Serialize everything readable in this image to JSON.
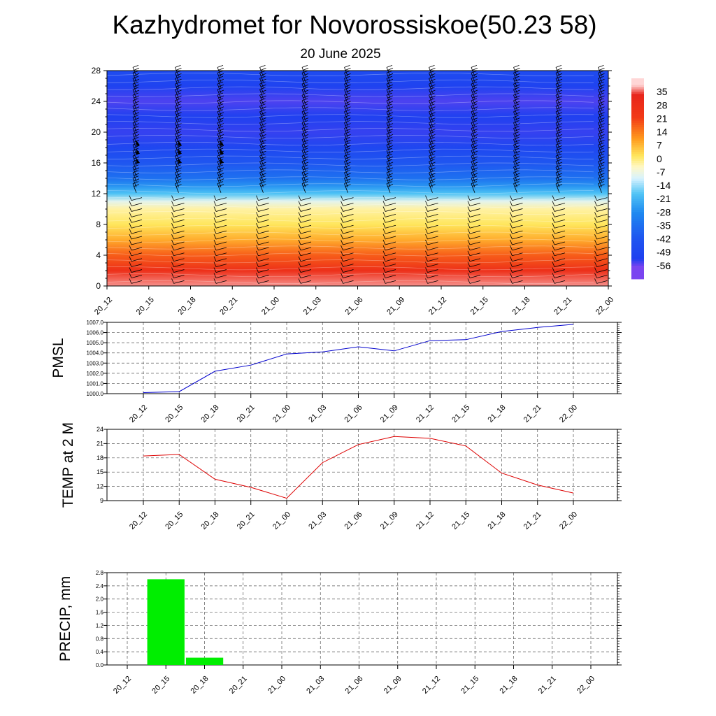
{
  "header": {
    "title": "Kazhydromet for Novorossiskoe(50.23 58)",
    "subtitle": "20 June 2025"
  },
  "chart_data": [
    {
      "type": "heatmap",
      "title": "",
      "xlabel": "",
      "ylabel": "",
      "x_ticks": [
        "20_12",
        "20_15",
        "20_18",
        "20_21",
        "21_00",
        "21_03",
        "21_06",
        "21_09",
        "21_12",
        "21_15",
        "21_18",
        "21_21",
        "22_00"
      ],
      "y_ticks": [
        "0",
        "4",
        "8",
        "12",
        "16",
        "20",
        "24",
        "28"
      ],
      "ylim": [
        0,
        28
      ],
      "y_levels_km": [
        0,
        2,
        4,
        6,
        8,
        10,
        11,
        12,
        13,
        14,
        16,
        18,
        20,
        22,
        24,
        26,
        28
      ],
      "temperature_profile_c": [
        33,
        24,
        14,
        5,
        -2,
        -6,
        -12,
        -22,
        -30,
        -38,
        -45,
        -52,
        -57,
        -55,
        -58,
        -54,
        -50
      ],
      "colorbar_labels": [
        "35",
        "28",
        "21",
        "14",
        "7",
        "0",
        "-7",
        "-14",
        "-21",
        "-28",
        "-35",
        "-42",
        "-49",
        "-56"
      ],
      "colors": {
        "warm": "#e8261c",
        "orange": "#ff9a1e",
        "yellow": "#fff4a0",
        "cyan": "#4fc3f5",
        "blue": "#1f3ff0",
        "violet": "#7a45f0"
      },
      "overlay": "wind barbs"
    },
    {
      "type": "line",
      "title": "",
      "ylabel": "PMSL",
      "categories": [
        "20_12",
        "20_15",
        "20_18",
        "20_21",
        "21_00",
        "21_03",
        "21_06",
        "21_09",
        "21_12",
        "21_15",
        "21_18",
        "21_21",
        "22_00"
      ],
      "values": [
        1000.1,
        1000.2,
        1002.2,
        1002.8,
        1003.9,
        1004.1,
        1004.6,
        1004.2,
        1005.2,
        1005.3,
        1006.1,
        1006.5,
        1006.8
      ],
      "ylim": [
        1000,
        1007
      ],
      "y_ticks": [
        "1000.0",
        "1001.0",
        "1002.0",
        "1003.0",
        "1004.0",
        "1005.0",
        "1006.0",
        "1007.0"
      ],
      "line_color": "#0000cc",
      "grid": true
    },
    {
      "type": "line",
      "title": "",
      "ylabel": "TEMP at 2 M",
      "categories": [
        "20_12",
        "20_15",
        "20_18",
        "20_21",
        "21_00",
        "21_03",
        "21_06",
        "21_09",
        "21_12",
        "21_15",
        "21_18",
        "21_21",
        "22_00"
      ],
      "values": [
        18.4,
        18.7,
        13.5,
        11.8,
        9.5,
        17.0,
        20.8,
        22.5,
        22.1,
        20.5,
        14.8,
        12.3,
        10.6
      ],
      "ylim": [
        9,
        24
      ],
      "y_ticks": [
        "9",
        "12",
        "15",
        "18",
        "21",
        "24"
      ],
      "line_color": "#dd0000",
      "grid": true
    },
    {
      "type": "bar",
      "title": "",
      "ylabel": "PRECIP, mm",
      "categories": [
        "20_12",
        "20_15",
        "20_18",
        "20_21",
        "21_00",
        "21_03",
        "21_06",
        "21_09",
        "21_12",
        "21_15",
        "21_18",
        "21_21",
        "22_00"
      ],
      "values": [
        0,
        2.6,
        0.22,
        0,
        0,
        0,
        0,
        0,
        0,
        0,
        0,
        0,
        0
      ],
      "ylim": [
        0,
        2.8
      ],
      "y_ticks": [
        "0.0",
        "0.4",
        "0.8",
        "1.2",
        "1.6",
        "2.0",
        "2.4",
        "2.8"
      ],
      "bar_color": "#00ee00",
      "grid": true
    }
  ]
}
